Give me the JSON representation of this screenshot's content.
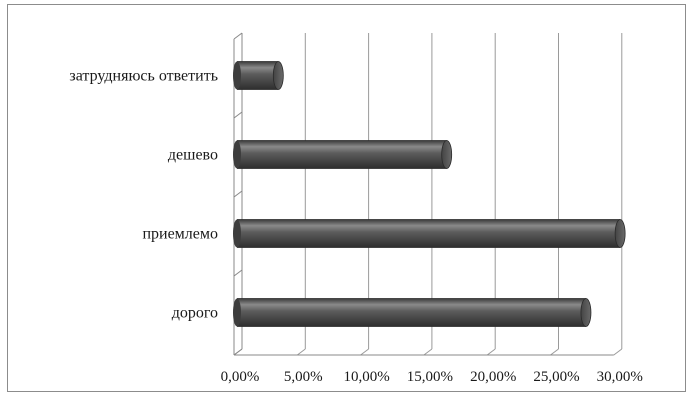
{
  "chart_data": {
    "type": "bar",
    "orientation": "horizontal",
    "style": "3d-cylinder",
    "categories": [
      "затрудняюсь ответить",
      "дешево",
      "приемлемо",
      "дорого"
    ],
    "values": [
      3.5,
      16.8,
      30.5,
      27.8
    ],
    "value_unit": "%",
    "xlim": [
      0,
      30
    ],
    "xticks": [
      0,
      5,
      10,
      15,
      20,
      25,
      30
    ],
    "xtick_labels": [
      "0,00%",
      "5,00%",
      "10,00%",
      "15,00%",
      "20,00%",
      "25,00%",
      "30,00%"
    ],
    "title": "",
    "xlabel": "",
    "ylabel": "",
    "grid": "vertical",
    "legend": "none",
    "colors": {
      "bar_fill": "#5a5a5a",
      "bar_highlight": "#8a8a8a",
      "bar_dark": "#2e2e2e",
      "grid": "#9a9a9a",
      "axis": "#888888"
    }
  }
}
